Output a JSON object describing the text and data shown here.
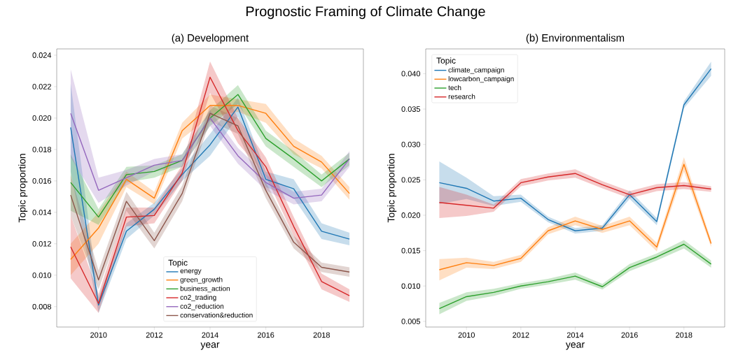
{
  "chart_data": [
    {
      "type": "line",
      "title": "(a) Development",
      "xlabel": "year",
      "ylabel": "Topic proportion",
      "legend_title": "Topic",
      "legend": "bottom",
      "marker": "none",
      "line_style": "solid",
      "annotations": [
        "Prognostic Framing of Climate Change"
      ],
      "x": [
        2009,
        2010,
        2011,
        2012,
        2013,
        2014,
        2015,
        2016,
        2017,
        2018,
        2019
      ],
      "xlim": [
        2008.5,
        2019.5
      ],
      "xticks": [
        2010,
        2012,
        2014,
        2016,
        2018
      ],
      "ylim": [
        0.0067,
        0.0244
      ],
      "yticks": [
        {
          "value": 0.008,
          "label": "0.008"
        },
        {
          "value": 0.01,
          "label": "0.010"
        },
        {
          "value": 0.012,
          "label": "0.012"
        },
        {
          "value": 0.014,
          "label": "0.014"
        },
        {
          "value": 0.016,
          "label": "0.016"
        },
        {
          "value": 0.018,
          "label": "0.018"
        },
        {
          "value": 0.02,
          "label": "0.020"
        },
        {
          "value": 0.022,
          "label": "0.022"
        },
        {
          "value": 0.024,
          "label": "0.024"
        }
      ],
      "series": [
        {
          "name": "energy",
          "color": "#1f77b4",
          "values": [
            0.0194,
            0.0081,
            0.0128,
            0.0142,
            0.0164,
            0.0183,
            0.0207,
            0.0161,
            0.0155,
            0.0128,
            0.0123
          ],
          "lower": [
            0.0166,
            0.0076,
            0.0123,
            0.0138,
            0.016,
            0.0176,
            0.0201,
            0.0156,
            0.0149,
            0.0123,
            0.0119
          ],
          "upper": [
            0.0222,
            0.0086,
            0.0133,
            0.0146,
            0.0168,
            0.019,
            0.0213,
            0.0166,
            0.0161,
            0.0133,
            0.0127
          ]
        },
        {
          "name": "green_growth",
          "color": "#ff7f0e",
          "values": [
            0.011,
            0.013,
            0.0161,
            0.0149,
            0.0192,
            0.0208,
            0.0208,
            0.0203,
            0.0182,
            0.0172,
            0.0152
          ],
          "lower": [
            0.01,
            0.012,
            0.0156,
            0.0145,
            0.0187,
            0.0201,
            0.0204,
            0.0197,
            0.0177,
            0.0168,
            0.0148
          ],
          "upper": [
            0.012,
            0.014,
            0.0166,
            0.0153,
            0.0197,
            0.0215,
            0.0212,
            0.0209,
            0.0187,
            0.0176,
            0.0156
          ]
        },
        {
          "name": "business_action",
          "color": "#2ca02c",
          "values": [
            0.0159,
            0.0137,
            0.0164,
            0.0166,
            0.0173,
            0.02,
            0.0215,
            0.0187,
            0.0174,
            0.016,
            0.0174
          ],
          "lower": [
            0.0141,
            0.0132,
            0.0159,
            0.0162,
            0.0169,
            0.0195,
            0.0209,
            0.0182,
            0.0169,
            0.0156,
            0.017
          ],
          "upper": [
            0.0177,
            0.0142,
            0.0169,
            0.017,
            0.0177,
            0.0205,
            0.0221,
            0.0192,
            0.0179,
            0.0164,
            0.0178
          ]
        },
        {
          "name": "co2_trading",
          "color": "#d62728",
          "values": [
            0.0118,
            0.0082,
            0.0137,
            0.0138,
            0.0165,
            0.0226,
            0.0192,
            0.0169,
            0.0131,
            0.0096,
            0.0087
          ],
          "lower": [
            0.0098,
            0.0076,
            0.0131,
            0.0133,
            0.016,
            0.0216,
            0.0184,
            0.0163,
            0.0125,
            0.0091,
            0.0083
          ],
          "upper": [
            0.0138,
            0.0088,
            0.0143,
            0.0143,
            0.017,
            0.0236,
            0.02,
            0.0175,
            0.0137,
            0.0101,
            0.0091
          ]
        },
        {
          "name": "co2_reduction",
          "color": "#9467bd",
          "values": [
            0.0203,
            0.0154,
            0.0162,
            0.017,
            0.0173,
            0.02,
            0.0176,
            0.0159,
            0.0149,
            0.0151,
            0.0174
          ],
          "lower": [
            0.0175,
            0.0146,
            0.0157,
            0.0166,
            0.0169,
            0.0195,
            0.0171,
            0.0154,
            0.0145,
            0.0147,
            0.0169
          ],
          "upper": [
            0.0231,
            0.0162,
            0.0167,
            0.0174,
            0.0177,
            0.0205,
            0.0181,
            0.0164,
            0.0153,
            0.0155,
            0.0179
          ]
        },
        {
          "name": "conservation&reduction",
          "color": "#8c564b",
          "values": [
            0.0151,
            0.0097,
            0.0147,
            0.0122,
            0.0152,
            0.0203,
            0.0195,
            0.0154,
            0.0121,
            0.0105,
            0.0102
          ],
          "lower": [
            0.0138,
            0.0091,
            0.0141,
            0.0117,
            0.0147,
            0.0198,
            0.019,
            0.0149,
            0.0117,
            0.0102,
            0.0099
          ],
          "upper": [
            0.0164,
            0.0103,
            0.0153,
            0.0127,
            0.0157,
            0.0208,
            0.02,
            0.0159,
            0.0125,
            0.0108,
            0.0105
          ]
        }
      ]
    },
    {
      "type": "line",
      "title": "(b) Environmentalism",
      "xlabel": "year",
      "ylabel": "Topic proportion",
      "legend_title": "Topic",
      "legend": "top left",
      "marker": "none",
      "line_style": "solid",
      "x": [
        2009,
        2010,
        2011,
        2012,
        2013,
        2014,
        2015,
        2016,
        2017,
        2018,
        2019
      ],
      "xlim": [
        2008.5,
        2019.5
      ],
      "xticks": [
        2010,
        2012,
        2014,
        2016,
        2018
      ],
      "ylim": [
        0.0042,
        0.0435
      ],
      "yticks": [
        {
          "value": 0.005,
          "label": "0.005"
        },
        {
          "value": 0.01,
          "label": "0.010"
        },
        {
          "value": 0.015,
          "label": "0.015"
        },
        {
          "value": 0.02,
          "label": "0.020"
        },
        {
          "value": 0.025,
          "label": "0.025"
        },
        {
          "value": 0.03,
          "label": "0.030"
        },
        {
          "value": 0.035,
          "label": "0.035"
        },
        {
          "value": 0.04,
          "label": "0.040"
        }
      ],
      "series": [
        {
          "name": "climate_campaign",
          "color": "#1f77b4",
          "values": [
            0.0246,
            0.0238,
            0.022,
            0.0224,
            0.0194,
            0.0178,
            0.0182,
            0.0229,
            0.0191,
            0.0356,
            0.0407
          ],
          "lower": [
            0.0216,
            0.0223,
            0.0213,
            0.0219,
            0.019,
            0.0174,
            0.0178,
            0.0223,
            0.0186,
            0.0351,
            0.0397
          ],
          "upper": [
            0.0276,
            0.0253,
            0.0227,
            0.0229,
            0.0198,
            0.0182,
            0.0186,
            0.0235,
            0.0196,
            0.0361,
            0.0417
          ]
        },
        {
          "name": "lowcarbon_campaign",
          "color": "#ff7f0e",
          "values": [
            0.0123,
            0.0133,
            0.0129,
            0.0139,
            0.0178,
            0.0192,
            0.018,
            0.0192,
            0.0155,
            0.0272,
            0.016
          ],
          "lower": [
            0.0108,
            0.0126,
            0.0124,
            0.0134,
            0.0173,
            0.0186,
            0.0175,
            0.0186,
            0.0149,
            0.0262,
            0.0155
          ],
          "upper": [
            0.0138,
            0.014,
            0.0134,
            0.0144,
            0.0183,
            0.0198,
            0.0185,
            0.0198,
            0.0161,
            0.0282,
            0.0165
          ]
        },
        {
          "name": "tech",
          "color": "#2ca02c",
          "values": [
            0.0068,
            0.0085,
            0.0091,
            0.01,
            0.0106,
            0.0114,
            0.0099,
            0.0126,
            0.0141,
            0.0159,
            0.0131
          ],
          "lower": [
            0.006,
            0.0079,
            0.0086,
            0.0096,
            0.0102,
            0.0109,
            0.0095,
            0.0121,
            0.0136,
            0.0153,
            0.0126
          ],
          "upper": [
            0.0076,
            0.0091,
            0.0096,
            0.0104,
            0.011,
            0.0119,
            0.0103,
            0.0131,
            0.0146,
            0.0165,
            0.0136
          ]
        },
        {
          "name": "research",
          "color": "#d62728",
          "values": [
            0.0218,
            0.0214,
            0.021,
            0.0246,
            0.0254,
            0.0259,
            0.0243,
            0.0229,
            0.0239,
            0.0242,
            0.0237
          ],
          "lower": [
            0.0196,
            0.0199,
            0.0205,
            0.0241,
            0.0249,
            0.0253,
            0.0238,
            0.0224,
            0.0234,
            0.0237,
            0.0233
          ],
          "upper": [
            0.024,
            0.0229,
            0.0215,
            0.0251,
            0.0259,
            0.0265,
            0.0248,
            0.0234,
            0.0244,
            0.0247,
            0.0241
          ]
        }
      ]
    }
  ]
}
